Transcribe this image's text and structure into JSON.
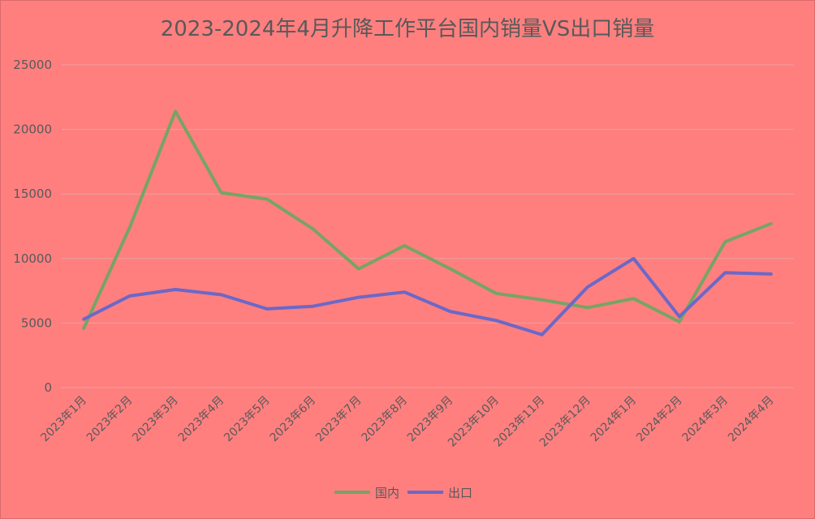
{
  "chart_data": {
    "type": "line",
    "title": "2023-2024年4月升降工作平台国内销量VS出口销量",
    "xlabel": "",
    "ylabel": "",
    "categories": [
      "2023年1月",
      "2023年2月",
      "2023年3月",
      "2023年4月",
      "2023年5月",
      "2023年6月",
      "2023年7月",
      "2023年8月",
      "2023年9月",
      "2023年10月",
      "2023年11月",
      "2023年12月",
      "2024年1月",
      "2024年2月",
      "2024年3月",
      "2024年4月"
    ],
    "series": [
      {
        "name": "国内",
        "color": "#77a464",
        "values": [
          4600,
          12400,
          21400,
          15100,
          14600,
          12300,
          9200,
          11000,
          9200,
          7300,
          6800,
          6200,
          6900,
          5100,
          11300,
          12700
        ]
      },
      {
        "name": "出口",
        "color": "#6b68c8",
        "values": [
          5300,
          7100,
          7600,
          7200,
          6100,
          6300,
          7000,
          7400,
          5900,
          5200,
          4100,
          7800,
          10000,
          5500,
          8900,
          8800
        ]
      }
    ],
    "ylim": [
      0,
      25000
    ],
    "yticks": [
      "0",
      "5000",
      "10000",
      "15000",
      "20000",
      "25000"
    ],
    "grid": true,
    "legend_position": "bottom"
  }
}
